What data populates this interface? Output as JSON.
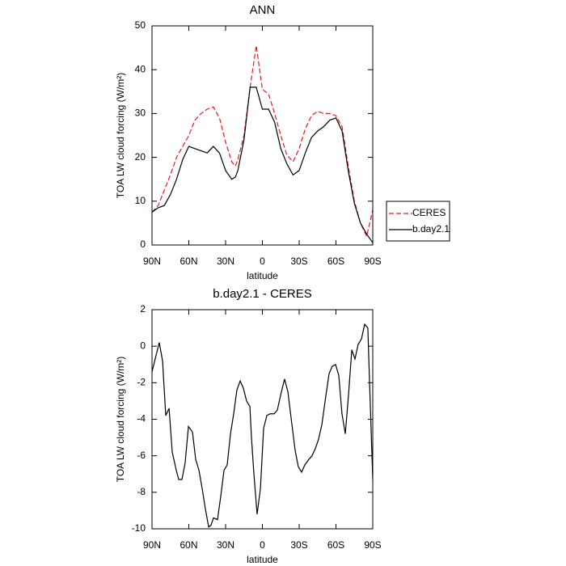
{
  "chart_data": [
    {
      "type": "line",
      "title": "ANN",
      "ylabel": "TOA LW cloud forcing (W/m²)",
      "xlabel": "latitude",
      "x": [
        90,
        85,
        80,
        75,
        70,
        65,
        60,
        55,
        50,
        45,
        40,
        35,
        30,
        25,
        22,
        20,
        15,
        10,
        5,
        0,
        -5,
        -10,
        -15,
        -20,
        -25,
        -30,
        -35,
        -40,
        -45,
        -50,
        -55,
        -60,
        -65,
        -70,
        -75,
        -80,
        -85,
        -90
      ],
      "series": [
        {
          "name": "CERES",
          "color": "#e41a1c",
          "line_style": "dashed",
          "values": [
            7.5,
            9,
            12.5,
            16,
            20,
            22.5,
            25,
            28.5,
            30,
            31,
            31.5,
            29,
            23.5,
            19,
            18,
            19.5,
            25,
            36,
            45.5,
            35.5,
            34.5,
            30,
            25,
            20.5,
            19,
            22,
            26.5,
            29.5,
            30.5,
            30,
            30,
            29.5,
            27,
            18,
            10,
            5,
            2,
            8
          ]
        },
        {
          "name": "b.day2.1",
          "color": "#000000",
          "line_style": "solid",
          "values": [
            7.5,
            8.5,
            9,
            11.5,
            15,
            19.5,
            22.5,
            22,
            21.5,
            21,
            22.5,
            21,
            17,
            15,
            15.5,
            17,
            24,
            36,
            36,
            31,
            31,
            28,
            22,
            18.5,
            16,
            17,
            21,
            24.5,
            26,
            27,
            28.5,
            29,
            26,
            17,
            9.5,
            5,
            2.5,
            0.5
          ]
        }
      ],
      "xlim": [
        90,
        -90
      ],
      "xticks": [
        {
          "value": 90,
          "label": "90N"
        },
        {
          "value": 60,
          "label": "60N"
        },
        {
          "value": 30,
          "label": "30N"
        },
        0,
        {
          "value": -30,
          "label": "30S"
        },
        {
          "value": -60,
          "label": "60S"
        },
        {
          "value": -90,
          "label": "90S"
        }
      ],
      "ylim": [
        0,
        50
      ],
      "yticks": [
        0,
        10,
        20,
        30,
        40,
        50
      ],
      "legend": "right"
    },
    {
      "type": "line",
      "title": "b.day2.1 - CERES",
      "ylabel": "TOA LW cloud forcing (W/m²)",
      "xlabel": "latitude",
      "x": [
        90,
        84.1,
        81.4,
        78.8,
        76.1,
        73.5,
        70.2,
        68.2,
        65.6,
        63.0,
        60.3,
        57.0,
        54.4,
        51.7,
        49.1,
        46.5,
        43.8,
        41.9,
        39.9,
        36.6,
        33.9,
        31.3,
        28.7,
        26.0,
        23.4,
        20.8,
        18.1,
        15.5,
        12.9,
        10.2,
        8.9,
        6.9,
        4.3,
        1.6,
        -1.0,
        -3.6,
        -6.3,
        -9.6,
        -12.2,
        -14.8,
        -18.1,
        -20.8,
        -24.1,
        -26.7,
        -29.3,
        -32.0,
        -34.6,
        -37.9,
        -40.5,
        -43.2,
        -45.8,
        -48.5,
        -51.8,
        -54.4,
        -57.0,
        -59.7,
        -62.3,
        -64.9,
        -67.6,
        -70.2,
        -72.9,
        -75.5,
        -78.1,
        -80.8,
        -83.4,
        -86.0,
        -87.4,
        -90
      ],
      "series": [
        {
          "name": "b.day2.1",
          "color": "#000000",
          "line_style": "solid",
          "values": [
            -1.4,
            0.2,
            -0.8,
            -3.8,
            -3.4,
            -5.8,
            -6.8,
            -7.3,
            -7.3,
            -6.4,
            -4.4,
            -4.7,
            -6.2,
            -6.8,
            -7.8,
            -8.9,
            -9.9,
            -9.8,
            -9.4,
            -9.5,
            -8.2,
            -6.8,
            -6.5,
            -4.8,
            -3.7,
            -2.4,
            -1.9,
            -2.3,
            -3.0,
            -3.3,
            -5,
            -7,
            -9.2,
            -7.8,
            -4.5,
            -3.8,
            -3.7,
            -3.7,
            -3.5,
            -2.7,
            -1.8,
            -2.5,
            -4.3,
            -5.7,
            -6.6,
            -6.9,
            -6.5,
            -6.2,
            -6.0,
            -5.6,
            -5.1,
            -4.3,
            -2.7,
            -1.5,
            -1.1,
            -1.0,
            -1.6,
            -3.7,
            -4.8,
            -2.7,
            -0.2,
            -0.7,
            0.1,
            0.4,
            1.2,
            1.0,
            -2,
            -7.3
          ]
        }
      ],
      "xlim": [
        90,
        -90
      ],
      "xticks": [
        {
          "value": 90,
          "label": "90N"
        },
        {
          "value": 60,
          "label": "60N"
        },
        {
          "value": 30,
          "label": "30N"
        },
        0,
        {
          "value": -30,
          "label": "30S"
        },
        {
          "value": -60,
          "label": "60S"
        },
        {
          "value": -90,
          "label": "90S"
        }
      ],
      "ylim": [
        -10,
        2
      ],
      "yticks": [
        -10,
        -8,
        -6,
        -4,
        -2,
        0,
        2
      ]
    }
  ]
}
